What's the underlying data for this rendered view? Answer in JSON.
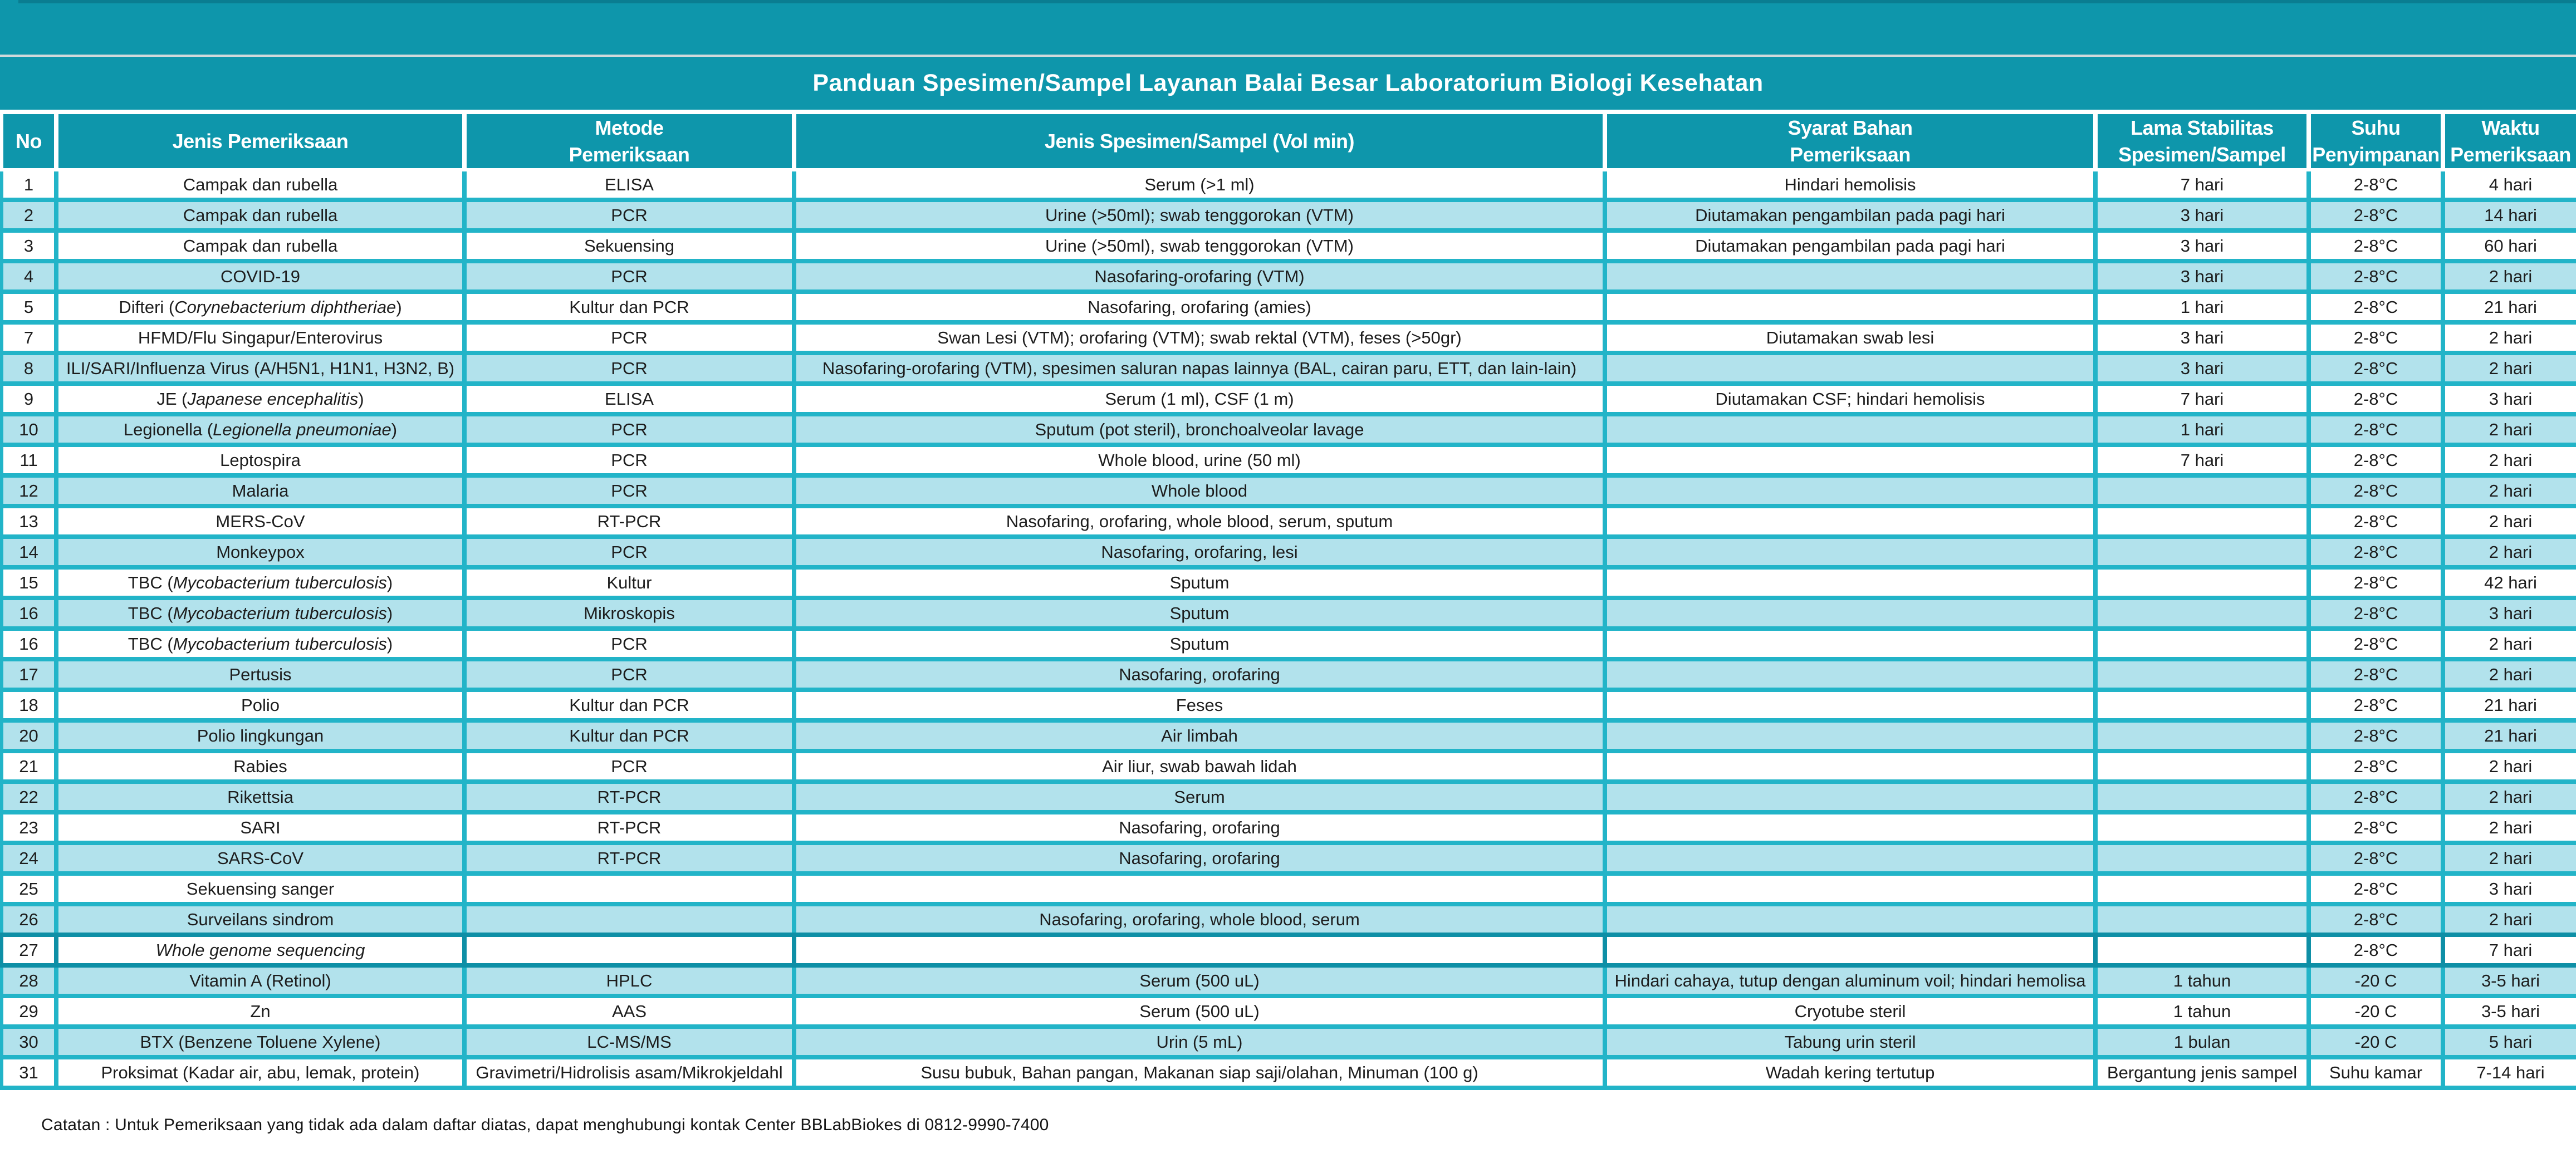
{
  "title": "Panduan Spesimen/Sampel Layanan Balai Besar Laboratorium Biologi Kesehatan",
  "columns": [
    {
      "key": "no",
      "label": "No"
    },
    {
      "key": "jenis",
      "label": "Jenis Pemeriksaan"
    },
    {
      "key": "metode",
      "label": "Metode\nPemeriksaan"
    },
    {
      "key": "spesimen",
      "label": "Jenis Spesimen/Sampel (Vol min)"
    },
    {
      "key": "syarat",
      "label": "Syarat Bahan\nPemeriksaan"
    },
    {
      "key": "lama",
      "label": "Lama Stabilitas\nSpesimen/Sampel"
    },
    {
      "key": "suhu",
      "label": "Suhu\nPenyimpanan"
    },
    {
      "key": "waktu",
      "label": "Waktu\nPemeriksaan"
    }
  ],
  "rows": [
    {
      "no": "1",
      "jenis": {
        "pre": "Campak dan rubella",
        "it": "",
        "post": ""
      },
      "metode": "ELISA",
      "spesimen": "Serum (>1 ml)",
      "syarat": "Hindari hemolisis",
      "lama": "7 hari",
      "suhu": "2-8°C",
      "waktu": "4 hari",
      "shaded": false,
      "highlight": false
    },
    {
      "no": "2",
      "jenis": {
        "pre": "Campak dan rubella",
        "it": "",
        "post": ""
      },
      "metode": "PCR",
      "spesimen": "Urine (>50ml); swab tenggorokan (VTM)",
      "syarat": "Diutamakan pengambilan pada pagi hari",
      "lama": "3 hari",
      "suhu": "2-8°C",
      "waktu": "14 hari",
      "shaded": true,
      "highlight": false
    },
    {
      "no": "3",
      "jenis": {
        "pre": "Campak dan rubella",
        "it": "",
        "post": ""
      },
      "metode": "Sekuensing",
      "spesimen": "Urine (>50ml), swab tenggorokan (VTM)",
      "syarat": "Diutamakan pengambilan pada pagi hari",
      "lama": "3 hari",
      "suhu": "2-8°C",
      "waktu": "60 hari",
      "shaded": false,
      "highlight": false
    },
    {
      "no": "4",
      "jenis": {
        "pre": "COVID-19",
        "it": "",
        "post": ""
      },
      "metode": "PCR",
      "spesimen": "Nasofaring-orofaring (VTM)",
      "syarat": "",
      "lama": "3 hari",
      "suhu": "2-8°C",
      "waktu": "2 hari",
      "shaded": true,
      "highlight": false
    },
    {
      "no": "5",
      "jenis": {
        "pre": "Difteri (",
        "it": "Corynebacterium diphtheriae",
        "post": ")"
      },
      "metode": "Kultur dan PCR",
      "spesimen": "Nasofaring, orofaring (amies)",
      "syarat": "",
      "lama": "1 hari",
      "suhu": "2-8°C",
      "waktu": "21 hari",
      "shaded": false,
      "highlight": false
    },
    {
      "no": "7",
      "jenis": {
        "pre": "HFMD/Flu Singapur/Enterovirus",
        "it": "",
        "post": ""
      },
      "metode": "PCR",
      "spesimen": "Swan Lesi (VTM); orofaring (VTM); swab rektal (VTM), feses (>50gr)",
      "syarat": "Diutamakan swab lesi",
      "lama": "3 hari",
      "suhu": "2-8°C",
      "waktu": "2 hari",
      "shaded": false,
      "highlight": false
    },
    {
      "no": "8",
      "jenis": {
        "pre": "ILI/SARI/Influenza Virus (A/H5N1, H1N1, H3N2, B)",
        "it": "",
        "post": ""
      },
      "metode": "PCR",
      "spesimen": "Nasofaring-orofaring (VTM), spesimen saluran napas lainnya (BAL, cairan paru, ETT, dan lain-lain)",
      "syarat": "",
      "lama": "3 hari",
      "suhu": "2-8°C",
      "waktu": "2 hari",
      "shaded": true,
      "highlight": false
    },
    {
      "no": "9",
      "jenis": {
        "pre": "JE (",
        "it": "Japanese encephalitis",
        "post": ")"
      },
      "metode": "ELISA",
      "spesimen": "Serum (1 ml), CSF (1 m)",
      "syarat": "Diutamakan CSF; hindari hemolisis",
      "lama": "7 hari",
      "suhu": "2-8°C",
      "waktu": "3 hari",
      "shaded": false,
      "highlight": false
    },
    {
      "no": "10",
      "jenis": {
        "pre": "Legionella (",
        "it": "Legionella pneumoniae",
        "post": ")"
      },
      "metode": "PCR",
      "spesimen": "Sputum (pot steril), bronchoalveolar lavage",
      "syarat": "",
      "lama": "1 hari",
      "suhu": "2-8°C",
      "waktu": "2 hari",
      "shaded": true,
      "highlight": false
    },
    {
      "no": "11",
      "jenis": {
        "pre": "Leptospira",
        "it": "",
        "post": ""
      },
      "metode": "PCR",
      "spesimen": "Whole blood, urine (50 ml)",
      "syarat": "",
      "lama": "7 hari",
      "suhu": "2-8°C",
      "waktu": "2 hari",
      "shaded": false,
      "highlight": false
    },
    {
      "no": "12",
      "jenis": {
        "pre": "Malaria",
        "it": "",
        "post": ""
      },
      "metode": "PCR",
      "spesimen": "Whole blood",
      "syarat": "",
      "lama": "",
      "suhu": "2-8°C",
      "waktu": "2 hari",
      "shaded": true,
      "highlight": false
    },
    {
      "no": "13",
      "jenis": {
        "pre": "MERS-CoV",
        "it": "",
        "post": ""
      },
      "metode": "RT-PCR",
      "spesimen": "Nasofaring, orofaring, whole blood, serum, sputum",
      "syarat": "",
      "lama": "",
      "suhu": "2-8°C",
      "waktu": "2 hari",
      "shaded": false,
      "highlight": false
    },
    {
      "no": "14",
      "jenis": {
        "pre": "Monkeypox",
        "it": "",
        "post": ""
      },
      "metode": "PCR",
      "spesimen": "Nasofaring, orofaring, lesi",
      "syarat": "",
      "lama": "",
      "suhu": "2-8°C",
      "waktu": "2 hari",
      "shaded": true,
      "highlight": false
    },
    {
      "no": "15",
      "jenis": {
        "pre": "TBC (",
        "it": "Mycobacterium tuberculosis",
        "post": ")"
      },
      "metode": "Kultur",
      "spesimen": "Sputum",
      "syarat": "",
      "lama": "",
      "suhu": "2-8°C",
      "waktu": "42 hari",
      "shaded": false,
      "highlight": false
    },
    {
      "no": "16",
      "jenis": {
        "pre": "TBC (",
        "it": "Mycobacterium tuberculosis",
        "post": ")"
      },
      "metode": "Mikroskopis",
      "spesimen": "Sputum",
      "syarat": "",
      "lama": "",
      "suhu": "2-8°C",
      "waktu": "3 hari",
      "shaded": true,
      "highlight": false
    },
    {
      "no": "16",
      "jenis": {
        "pre": "TBC (",
        "it": "Mycobacterium tuberculosis",
        "post": ")"
      },
      "metode": "PCR",
      "spesimen": "Sputum",
      "syarat": "",
      "lama": "",
      "suhu": "2-8°C",
      "waktu": "2 hari",
      "shaded": false,
      "highlight": false
    },
    {
      "no": "17",
      "jenis": {
        "pre": "Pertusis",
        "it": "",
        "post": ""
      },
      "metode": "PCR",
      "spesimen": "Nasofaring, orofaring",
      "syarat": "",
      "lama": "",
      "suhu": "2-8°C",
      "waktu": "2 hari",
      "shaded": true,
      "highlight": false
    },
    {
      "no": "18",
      "jenis": {
        "pre": "Polio",
        "it": "",
        "post": ""
      },
      "metode": "Kultur dan PCR",
      "spesimen": "Feses",
      "syarat": "",
      "lama": "",
      "suhu": "2-8°C",
      "waktu": "21 hari",
      "shaded": false,
      "highlight": false
    },
    {
      "no": "20",
      "jenis": {
        "pre": "Polio lingkungan",
        "it": "",
        "post": ""
      },
      "metode": "Kultur dan PCR",
      "spesimen": "Air limbah",
      "syarat": "",
      "lama": "",
      "suhu": "2-8°C",
      "waktu": "21 hari",
      "shaded": true,
      "highlight": false
    },
    {
      "no": "21",
      "jenis": {
        "pre": "Rabies",
        "it": "",
        "post": ""
      },
      "metode": "PCR",
      "spesimen": "Air liur, swab bawah lidah",
      "syarat": "",
      "lama": "",
      "suhu": "2-8°C",
      "waktu": "2 hari",
      "shaded": false,
      "highlight": false
    },
    {
      "no": "22",
      "jenis": {
        "pre": "Rikettsia",
        "it": "",
        "post": ""
      },
      "metode": "RT-PCR",
      "spesimen": "Serum",
      "syarat": "",
      "lama": "",
      "suhu": "2-8°C",
      "waktu": "2 hari",
      "shaded": true,
      "highlight": false
    },
    {
      "no": "23",
      "jenis": {
        "pre": "SARI",
        "it": "",
        "post": ""
      },
      "metode": "RT-PCR",
      "spesimen": "Nasofaring, orofaring",
      "syarat": "",
      "lama": "",
      "suhu": "2-8°C",
      "waktu": "2 hari",
      "shaded": false,
      "highlight": false
    },
    {
      "no": "24",
      "jenis": {
        "pre": "SARS-CoV",
        "it": "",
        "post": ""
      },
      "metode": "RT-PCR",
      "spesimen": "Nasofaring, orofaring",
      "syarat": "",
      "lama": "",
      "suhu": "2-8°C",
      "waktu": "2 hari",
      "shaded": true,
      "highlight": false
    },
    {
      "no": "25",
      "jenis": {
        "pre": "Sekuensing sanger",
        "it": "",
        "post": ""
      },
      "metode": "",
      "spesimen": "",
      "syarat": "",
      "lama": "",
      "suhu": "2-8°C",
      "waktu": "3 hari",
      "shaded": false,
      "highlight": false
    },
    {
      "no": "26",
      "jenis": {
        "pre": "Surveilans sindrom",
        "it": "",
        "post": ""
      },
      "metode": "",
      "spesimen": "Nasofaring, orofaring, whole blood, serum",
      "syarat": "",
      "lama": "",
      "suhu": "2-8°C",
      "waktu": "2 hari",
      "shaded": true,
      "highlight": false
    },
    {
      "no": "27",
      "jenis": {
        "pre": "",
        "it": "Whole genome sequencing",
        "post": ""
      },
      "metode": "",
      "spesimen": "",
      "syarat": "",
      "lama": "",
      "suhu": "2-8°C",
      "waktu": "7 hari",
      "shaded": false,
      "highlight": true
    },
    {
      "no": "28",
      "jenis": {
        "pre": "Vitamin A (Retinol)",
        "it": "",
        "post": ""
      },
      "metode": "HPLC",
      "spesimen": "Serum (500 uL)",
      "syarat": "Hindari cahaya, tutup dengan aluminum voil; hindari hemolisa",
      "lama": "1 tahun",
      "suhu": "-20 C",
      "waktu": "3-5 hari",
      "shaded": true,
      "highlight": false
    },
    {
      "no": "29",
      "jenis": {
        "pre": "Zn",
        "it": "",
        "post": ""
      },
      "metode": "AAS",
      "spesimen": "Serum (500 uL)",
      "syarat": "Cryotube steril",
      "lama": "1 tahun",
      "suhu": "-20 C",
      "waktu": "3-5 hari",
      "shaded": false,
      "highlight": false
    },
    {
      "no": "30",
      "jenis": {
        "pre": "BTX (Benzene Toluene Xylene)",
        "it": "",
        "post": ""
      },
      "metode": "LC-MS/MS",
      "spesimen": "Urin (5 mL)",
      "syarat": "Tabung urin steril",
      "lama": "1 bulan",
      "suhu": "-20 C",
      "waktu": "5 hari",
      "shaded": true,
      "highlight": false
    },
    {
      "no": "31",
      "jenis": {
        "pre": "Proksimat (Kadar air, abu, lemak, protein)",
        "it": "",
        "post": ""
      },
      "metode": "Gravimetri/Hidrolisis asam/Mikrokjeldahl",
      "spesimen": "Susu bubuk, Bahan pangan, Makanan siap saji/olahan, Minuman (100 g)",
      "syarat": "Wadah kering tertutup",
      "lama": "Bergantung jenis sampel",
      "suhu": "Suhu kamar",
      "waktu": "7-14 hari",
      "shaded": false,
      "highlight": false
    }
  ],
  "footer": {
    "note": "Catatan : Untuk Pemeriksaan yang tidak ada dalam daftar diatas, dapat menghubungi kontak Center BBLabBiokes di 0812-9990-7400"
  },
  "colors": {
    "header_teal": "#0e96ab",
    "top_strip_teal": "#0a7d91",
    "gutter_teal": "#22b4c8",
    "row_light_cyan": "#b2e2ec",
    "separator_dark": "#0e8fa6"
  }
}
